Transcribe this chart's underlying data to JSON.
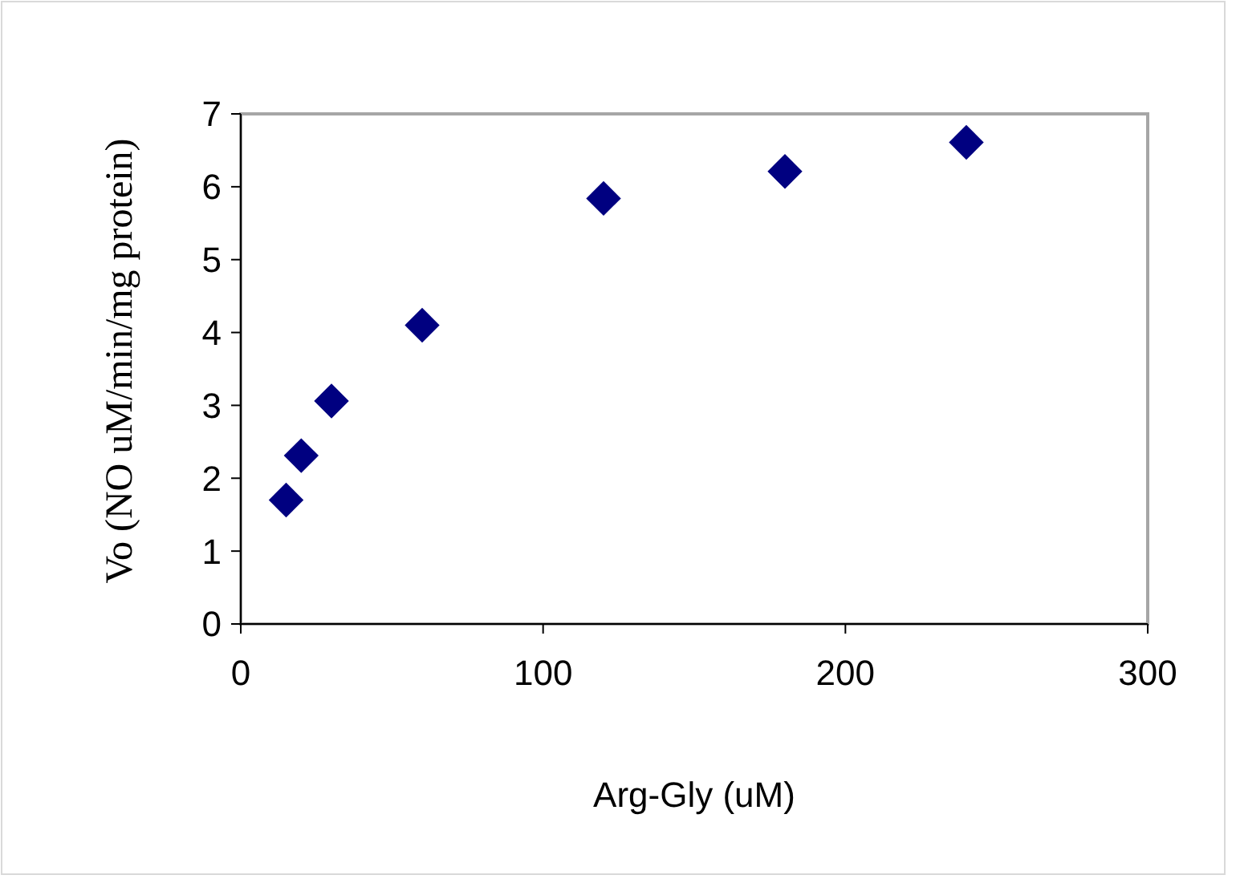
{
  "chart_data": {
    "type": "scatter",
    "xlabel": "Arg-Gly (uM)",
    "ylabel": "Vo (NO uM/min/mg protein)",
    "x": [
      15,
      20,
      30,
      60,
      120,
      180,
      240
    ],
    "series": [
      {
        "color": "#000080",
        "values": [
          1.7,
          2.31,
          3.06,
          4.1,
          5.84,
          6.21,
          6.61
        ]
      }
    ],
    "xlim": [
      0,
      300
    ],
    "xticks": [
      0,
      100,
      200,
      300
    ],
    "ylim": [
      0,
      7
    ],
    "yticks": [
      0,
      1,
      2,
      3,
      4,
      5,
      6,
      7
    ],
    "grid": false,
    "marker": "diamond"
  }
}
